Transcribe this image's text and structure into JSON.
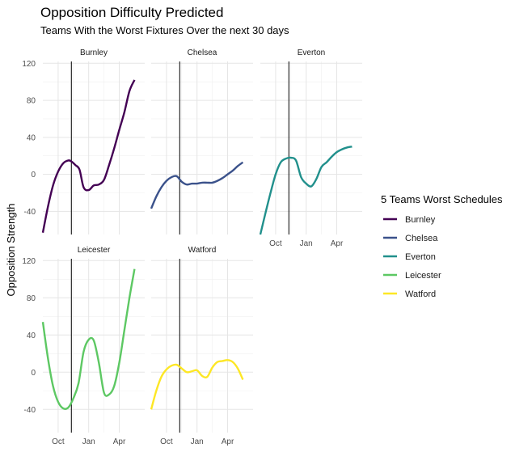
{
  "chart_data": {
    "type": "line",
    "title": "Opposition Difficulty Predicted",
    "subtitle": "Teams With the Worst Fixtures Over the next 30 days",
    "ylabel": "Opposition Strength",
    "xlabel": "",
    "ylim": [
      -65,
      122
    ],
    "yticks": [
      -40,
      0,
      40,
      80,
      120
    ],
    "xticks": [
      "Oct",
      "Jan",
      "Apr"
    ],
    "xtick_positions": [
      1.5,
      4.5,
      7.5
    ],
    "xlim": [
      0,
      10
    ],
    "vline_x": 2.8,
    "grid": true,
    "legend_title": "5 Teams Worst Schedules",
    "legend_position": "right",
    "facets": [
      {
        "name": "Burnley",
        "color": "#440154",
        "x": [
          0,
          0.5,
          1,
          1.5,
          2,
          2.5,
          2.8,
          3.2,
          3.6,
          4,
          4.5,
          5,
          5.5,
          6,
          6.5,
          7,
          7.5,
          8,
          8.5,
          9
        ],
        "y": [
          -63,
          -35,
          -12,
          3,
          12,
          15,
          14,
          10,
          5,
          -14,
          -17,
          -12,
          -11,
          -6,
          10,
          28,
          48,
          67,
          90,
          102
        ]
      },
      {
        "name": "Chelsea",
        "color": "#3B528B",
        "x": [
          0,
          0.5,
          1,
          1.5,
          2,
          2.5,
          3,
          3.5,
          4,
          4.5,
          5,
          5.5,
          6,
          6.5,
          7,
          7.5,
          8,
          8.5,
          9
        ],
        "y": [
          -37,
          -24,
          -14,
          -7,
          -3,
          -2,
          -8,
          -11,
          -10,
          -10,
          -9,
          -9,
          -9,
          -7,
          -4,
          0,
          4,
          9,
          13
        ]
      },
      {
        "name": "Everton",
        "color": "#21908C",
        "x": [
          0,
          0.5,
          1,
          1.5,
          2,
          2.5,
          3,
          3.5,
          4,
          4.5,
          5,
          5.5,
          6,
          6.5,
          7,
          7.5,
          8,
          8.5,
          9
        ],
        "y": [
          -65,
          -42,
          -20,
          0,
          13,
          17,
          18,
          15,
          -3,
          -10,
          -13,
          -5,
          8,
          13,
          19,
          24,
          27,
          29,
          30
        ]
      },
      {
        "name": "Leicester",
        "color": "#5DC863",
        "x": [
          0,
          0.5,
          1,
          1.5,
          2,
          2.5,
          3,
          3.5,
          4,
          4.5,
          5,
          5.5,
          6,
          6.5,
          7,
          7.5,
          8,
          8.5,
          9
        ],
        "y": [
          54,
          15,
          -15,
          -32,
          -39,
          -38,
          -28,
          -12,
          22,
          35,
          34,
          10,
          -22,
          -24,
          -15,
          10,
          45,
          80,
          111
        ]
      },
      {
        "name": "Watford",
        "color": "#FDE725",
        "x": [
          0,
          0.5,
          1,
          1.5,
          2,
          2.5,
          3,
          3.5,
          4,
          4.5,
          5,
          5.5,
          6,
          6.5,
          7,
          7.5,
          8,
          8.5,
          9
        ],
        "y": [
          -40,
          -20,
          -5,
          3,
          7,
          8,
          4,
          0,
          1,
          2,
          -4,
          -5,
          5,
          11,
          12,
          13,
          11,
          4,
          -8
        ]
      }
    ]
  }
}
